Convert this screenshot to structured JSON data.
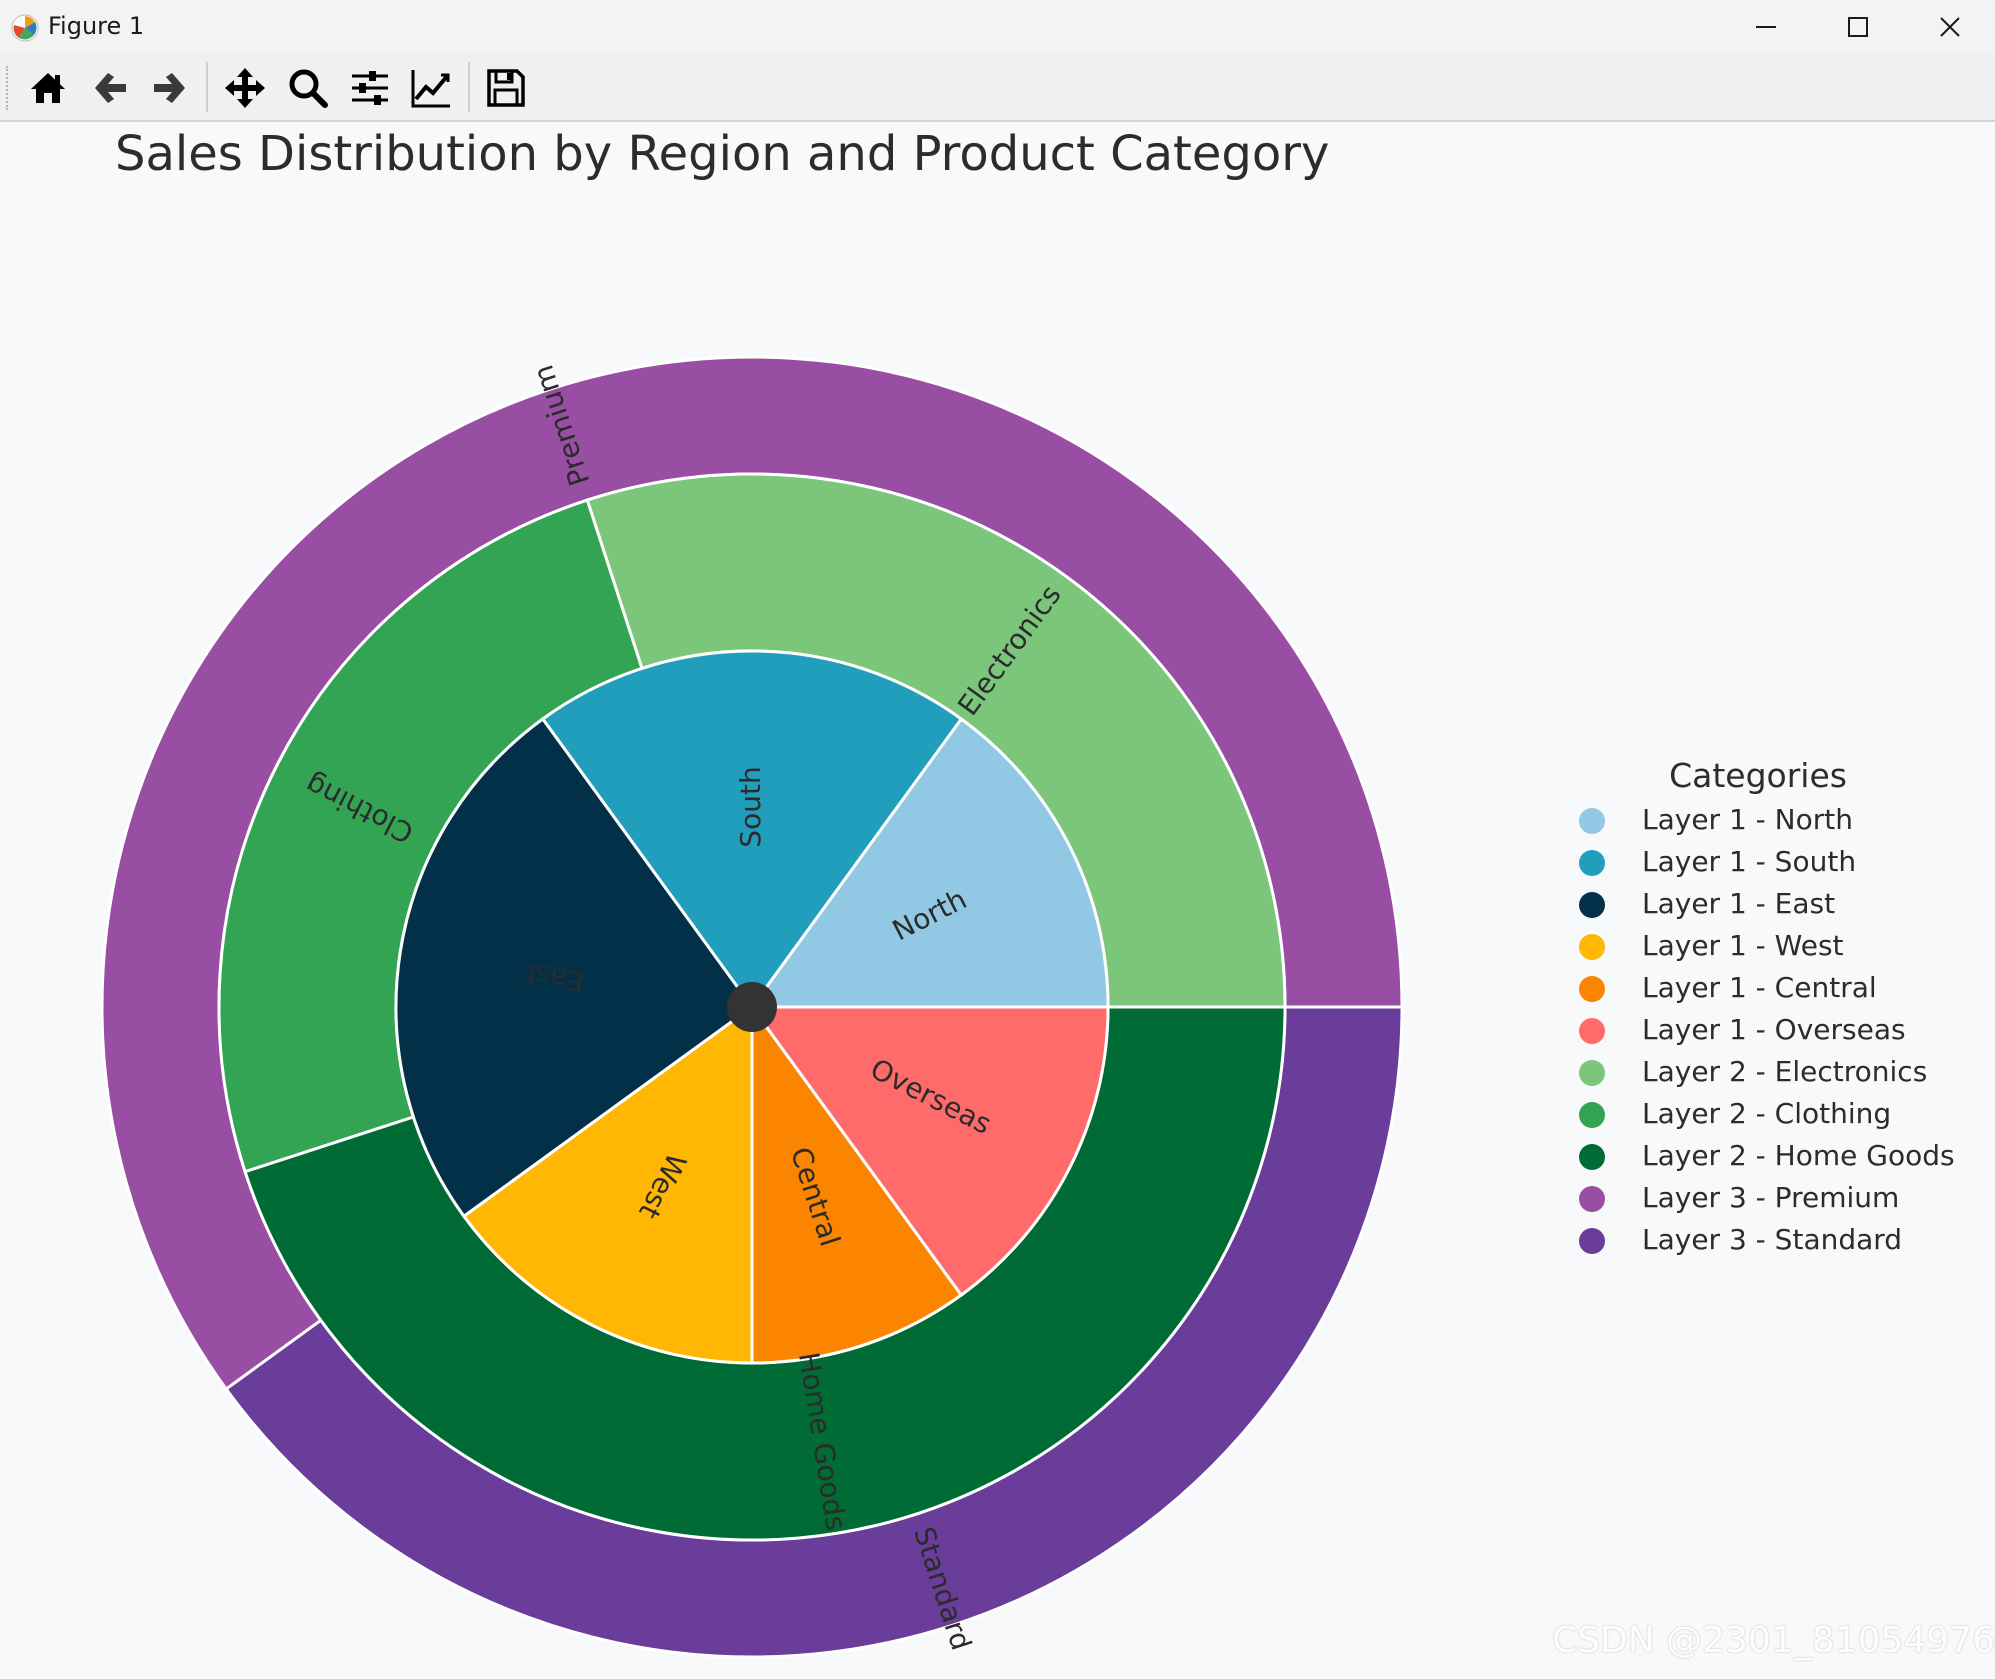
{
  "window": {
    "title": "Figure 1",
    "controls": [
      "minimize-icon",
      "maximize-icon",
      "close-icon"
    ]
  },
  "toolbar": {
    "buttons": [
      {
        "name": "home-button",
        "icon": "home-icon"
      },
      {
        "name": "back-button",
        "icon": "arrow-left-icon"
      },
      {
        "name": "forward-button",
        "icon": "arrow-right-icon"
      },
      {
        "name": "pan-button",
        "icon": "move-icon"
      },
      {
        "name": "zoom-button",
        "icon": "magnifier-icon"
      },
      {
        "name": "configure-subplots-button",
        "icon": "sliders-icon"
      },
      {
        "name": "edit-axis-button",
        "icon": "line-chart-icon"
      },
      {
        "name": "save-button",
        "icon": "floppy-disk-icon"
      }
    ]
  },
  "chart_data": {
    "type": "pie",
    "subtype": "nested-donut",
    "title": "Sales Distribution by Region and Product Category",
    "legend": {
      "title": "Categories",
      "placement": "right"
    },
    "layers": [
      {
        "name": "Layer 1",
        "slices": [
          {
            "label": "North",
            "value": 15,
            "color": "#91c9e4"
          },
          {
            "label": "South",
            "value": 20,
            "color": "#229ebd"
          },
          {
            "label": "East",
            "value": 25,
            "color": "#023048"
          },
          {
            "label": "West",
            "value": 15,
            "color": "#ffb703"
          },
          {
            "label": "Central",
            "value": 10,
            "color": "#fb8500"
          },
          {
            "label": "Overseas",
            "value": 15,
            "color": "#ff6b6b"
          }
        ]
      },
      {
        "name": "Layer 2",
        "slices": [
          {
            "label": "Electronics",
            "value": 30,
            "color": "#7bc67b"
          },
          {
            "label": "Clothing",
            "value": 25,
            "color": "#33a354"
          },
          {
            "label": "Home Goods",
            "value": 45,
            "color": "#006b35"
          }
        ]
      },
      {
        "name": "Layer 3",
        "slices": [
          {
            "label": "Premium",
            "value": 60,
            "color": "#984ea2"
          },
          {
            "label": "Standard",
            "value": 40,
            "color": "#6a3d9a"
          }
        ]
      }
    ],
    "legend_entries": [
      {
        "label": "Layer 1 - North",
        "color": "#91c9e4"
      },
      {
        "label": "Layer 1 - South",
        "color": "#229ebd"
      },
      {
        "label": "Layer 1 - East",
        "color": "#023048"
      },
      {
        "label": "Layer 1 - West",
        "color": "#ffb703"
      },
      {
        "label": "Layer 1 - Central",
        "color": "#fb8500"
      },
      {
        "label": "Layer 1 - Overseas",
        "color": "#ff6b6b"
      },
      {
        "label": "Layer 2 - Electronics",
        "color": "#7bc67b"
      },
      {
        "label": "Layer 2 - Clothing",
        "color": "#33a354"
      },
      {
        "label": "Layer 2 - Home Goods",
        "color": "#006b35"
      },
      {
        "label": "Layer 3 - Premium",
        "color": "#984ea2"
      },
      {
        "label": "Layer 3 - Standard",
        "color": "#6a3d9a"
      }
    ]
  },
  "watermark": "CSDN @2301_81054976"
}
